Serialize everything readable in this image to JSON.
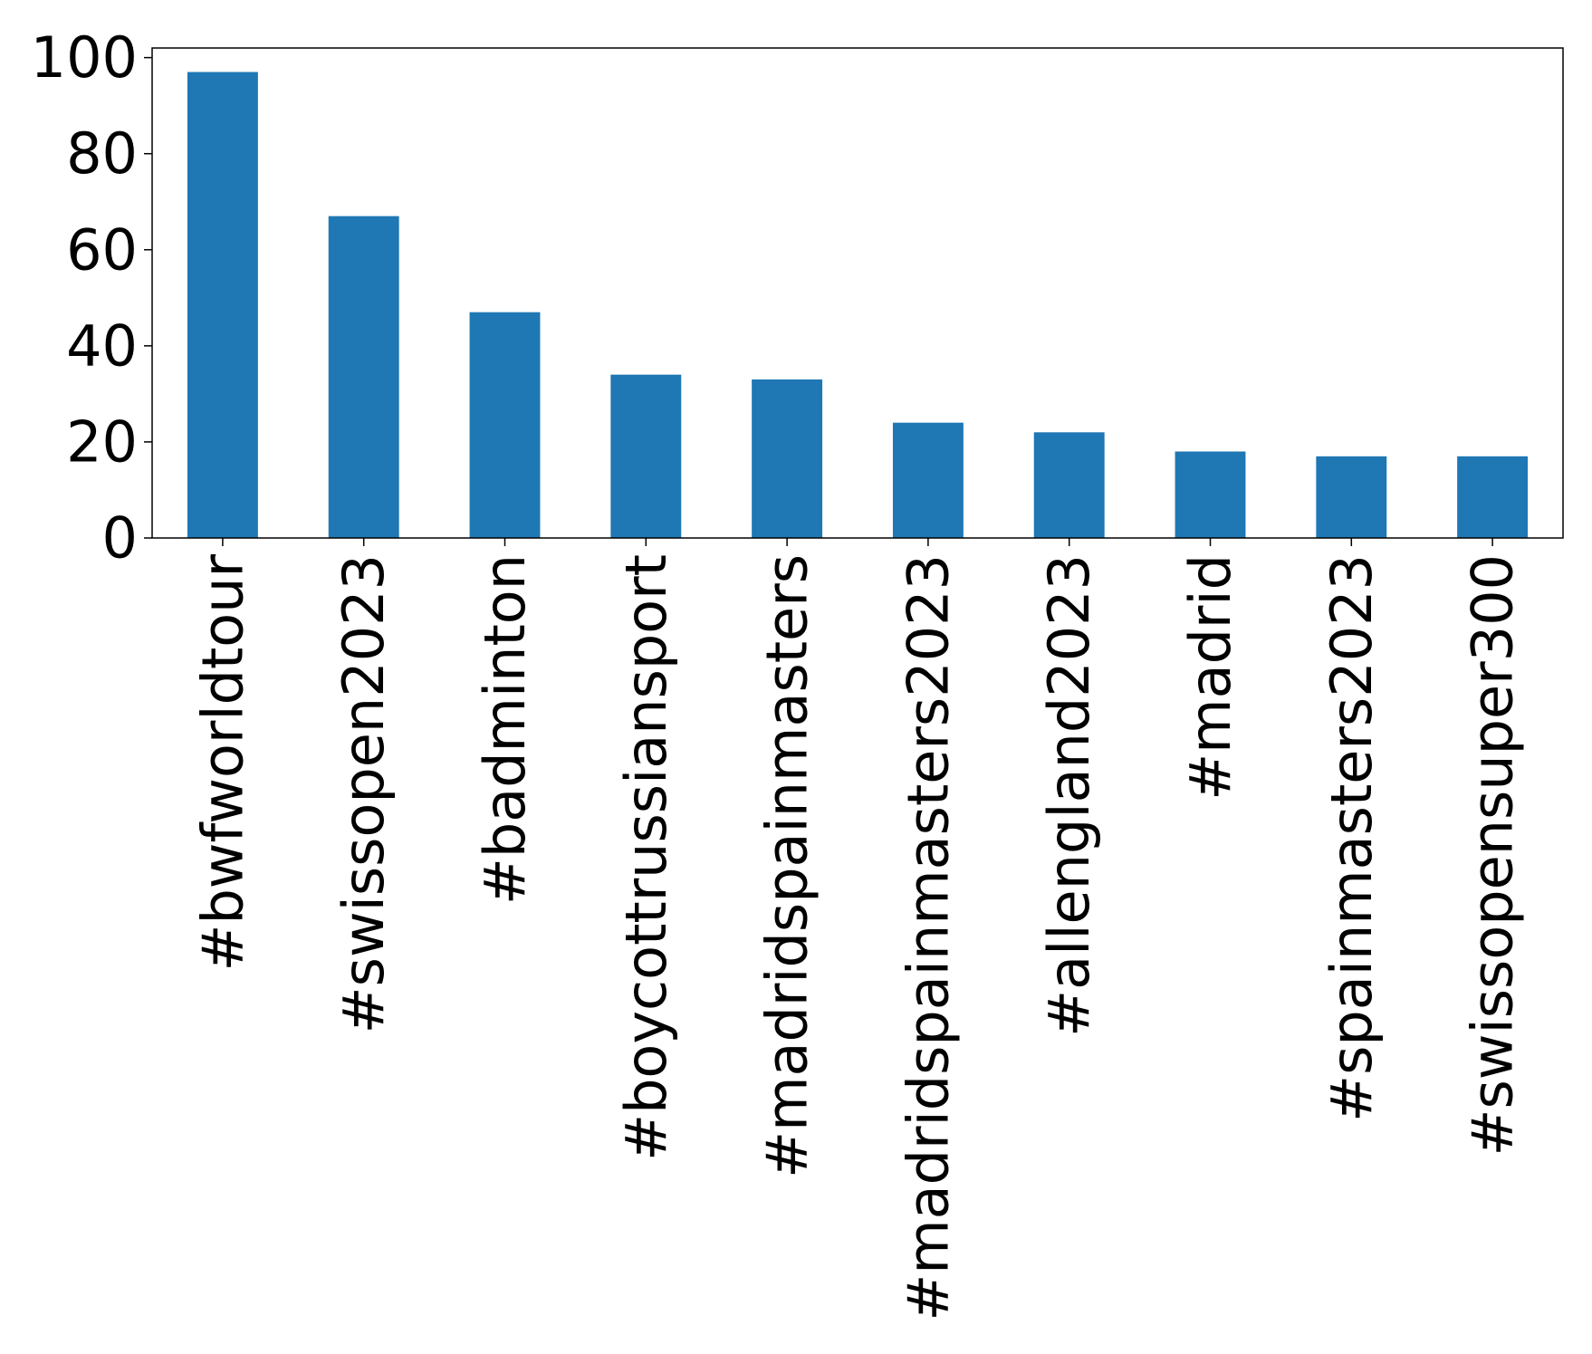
{
  "chart_data": {
    "type": "bar",
    "title": "",
    "xlabel": "",
    "ylabel": "",
    "categories": [
      "#bwfworldtour",
      "#swissopen2023",
      "#badminton",
      "#boycottrussiansport",
      "#madridspainmasters",
      "#madridspainmasters2023",
      "#allengland2023",
      "#madrid",
      "#spainmasters2023",
      "#swissopensuper300"
    ],
    "values": [
      97,
      67,
      47,
      34,
      33,
      24,
      22,
      18,
      17,
      17
    ],
    "ylim": [
      0,
      102
    ],
    "yticks": [
      0,
      20,
      40,
      60,
      80,
      100
    ],
    "grid": false,
    "legend": "none",
    "bar_color": "#1f77b4"
  }
}
